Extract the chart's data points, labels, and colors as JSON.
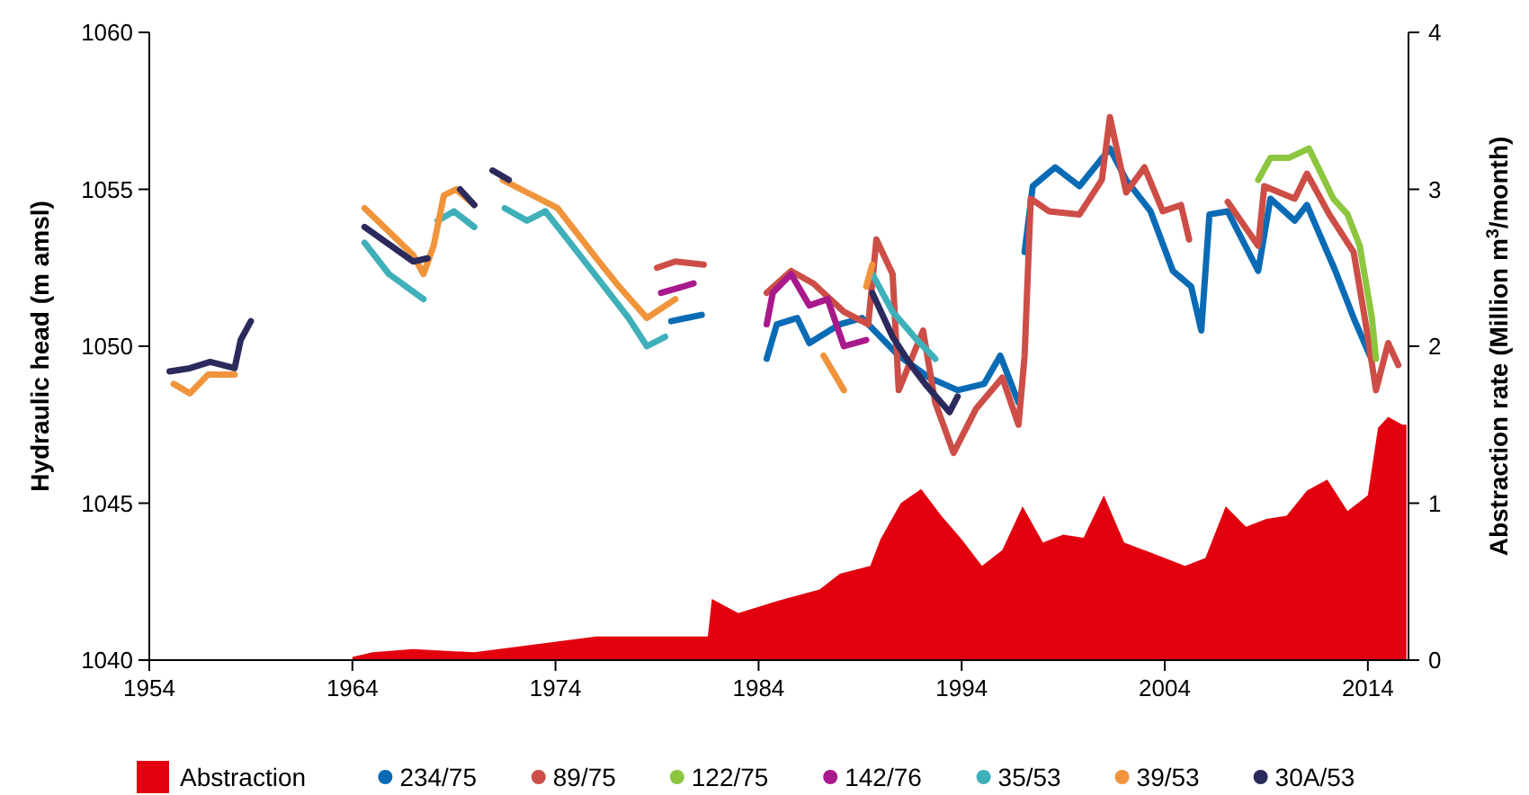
{
  "chart_data": {
    "type": "line",
    "xlabel": null,
    "ylabel": "Hydraulic head (m amsl)",
    "y2label": "Abstraction rate (Million m$^{3}$/month)",
    "xlim": [
      1954,
      2016
    ],
    "xticks": [
      1954,
      1964,
      1974,
      1984,
      1994,
      2004,
      2014
    ],
    "ylim": [
      1040,
      1060
    ],
    "yticks": [
      1040,
      1045,
      1050,
      1055,
      1060
    ],
    "y2lim": [
      0,
      4
    ],
    "y2ticks": [
      0,
      1,
      2,
      3,
      4
    ],
    "grid": false,
    "legend": "bottom",
    "line_style": "solid",
    "series": [
      {
        "name": "Abstraction",
        "type": "area",
        "axis": "y2",
        "color": "#e2000f",
        "x": [
          1964,
          1965,
          1967,
          1970,
          1973,
          1976,
          1979,
          1981.5,
          1981.7,
          1983,
          1985,
          1987,
          1988,
          1989.5,
          1990,
          1991,
          1992,
          1993,
          1994,
          1995,
          1996,
          1997,
          1998,
          1999,
          2000,
          2001,
          2002,
          2003,
          2004,
          2005,
          2006,
          2007,
          2008,
          2009,
          2010,
          2011,
          2012,
          2013,
          2014,
          2014.5,
          2015,
          2015.7,
          2015.9
        ],
        "values": [
          0.02,
          0.05,
          0.07,
          0.05,
          0.1,
          0.15,
          0.15,
          0.15,
          0.39,
          0.3,
          0.38,
          0.45,
          0.55,
          0.6,
          0.77,
          1.0,
          1.09,
          0.92,
          0.77,
          0.6,
          0.7,
          0.98,
          0.75,
          0.8,
          0.78,
          1.05,
          0.75,
          0.7,
          0.65,
          0.6,
          0.65,
          0.98,
          0.85,
          0.9,
          0.92,
          1.08,
          1.15,
          0.95,
          1.05,
          1.48,
          1.55,
          1.5,
          1.5
        ]
      },
      {
        "name": "234/75",
        "color": "#0a6bb5",
        "x": [
          1979.7,
          1981.2,
          1981.3,
          1984.4,
          1984.9,
          1985.9,
          1986.5,
          1988.0,
          1989.1,
          1990.9,
          1992.4,
          1993.8,
          1995.1,
          1995.9,
          1996.8,
          1996.9,
          1997.1,
          1997.5,
          1998.6,
          1999.8,
          2001.3,
          2002.1,
          2003.3,
          2004.4,
          2005.3,
          2005.8,
          2006.2,
          2007.1,
          2008.6,
          2009.2,
          2010.4,
          2011.0,
          2012.4,
          2013.3,
          2014.1
        ],
        "values": [
          1050.8,
          1051.0,
          null,
          1049.6,
          1050.7,
          1050.9,
          1050.1,
          1050.7,
          1050.9,
          1049.7,
          1049.0,
          1048.6,
          1048.8,
          1049.7,
          1048.2,
          null,
          1053.0,
          1055.1,
          1055.7,
          1055.1,
          1056.3,
          1055.3,
          1054.3,
          1052.4,
          1051.9,
          1050.5,
          1054.2,
          1054.3,
          1052.4,
          1054.7,
          1054.0,
          1054.5,
          1052.4,
          1050.9,
          1049.7
        ]
      },
      {
        "name": "89/75",
        "color": "#cc4e46",
        "x": [
          1979.0,
          1979.9,
          1981.3,
          1981.4,
          1984.4,
          1985.6,
          1986.7,
          1988.2,
          1989.4,
          1989.8,
          1990.6,
          1990.9,
          1992.1,
          1992.7,
          1993.6,
          1994.7,
          1996.0,
          1996.8,
          1997.1,
          1997.4,
          1998.3,
          1999.8,
          2000.9,
          2001.3,
          2002.1,
          2003.0,
          2003.9,
          2004.8,
          2005.2,
          2006,
          2007.1,
          2008.6,
          2008.9,
          2010.4,
          2011.0,
          2012.1,
          2013.3,
          2013.9,
          2014.4,
          2015.0,
          2015.5
        ],
        "values": [
          1052.5,
          1052.7,
          1052.6,
          null,
          1051.7,
          1052.4,
          1052.0,
          1051.1,
          1050.7,
          1053.4,
          1052.3,
          1048.6,
          1050.5,
          1048.2,
          1046.6,
          1048.0,
          1049.0,
          1047.5,
          1049.7,
          1054.7,
          1054.3,
          1054.2,
          1055.3,
          1057.3,
          1054.9,
          1055.7,
          1054.3,
          1054.5,
          1053.4,
          null,
          1054.6,
          1053.2,
          1055.1,
          1054.7,
          1055.5,
          1054.2,
          1053.0,
          1050.7,
          1048.6,
          1050.1,
          1049.4
        ]
      },
      {
        "name": "122/75",
        "color": "#8cc63f",
        "x": [
          2008.6,
          2009.2,
          2010.1,
          2011.1,
          2012.3,
          2013.0,
          2013.6,
          2014.2,
          2014.4
        ],
        "values": [
          1055.3,
          1056.0,
          1056.0,
          1056.3,
          1054.7,
          1054.2,
          1053.2,
          1050.9,
          1049.6
        ]
      },
      {
        "name": "142/76",
        "color": "#a8198c",
        "x": [
          1979.2,
          1980.8,
          1982,
          1984.4,
          1984.7,
          1985.6,
          1986.5,
          1987.4,
          1988.2,
          1989.3
        ],
        "values": [
          1051.7,
          1052.0,
          null,
          1050.7,
          1051.7,
          1052.3,
          1051.3,
          1051.5,
          1050.0,
          1050.2
        ]
      },
      {
        "name": "35/53",
        "color": "#3fb0b9",
        "x": [
          1964.6,
          1965.8,
          1967.5,
          1967.8,
          1968.2,
          1969.0,
          1970.0,
          1970.7,
          1971.5,
          1972.6,
          1973.5,
          1974.6,
          1976.4,
          1977.6,
          1978.5,
          1979.4,
          1980,
          1989.6,
          1990.6,
          1991.8,
          1992.7
        ],
        "values": [
          1053.3,
          1052.3,
          1051.5,
          null,
          1054.0,
          1054.3,
          1053.8,
          null,
          1054.4,
          1054.0,
          1054.3,
          1053.4,
          1051.9,
          1050.9,
          1050.0,
          1050.3,
          null,
          1052.3,
          1051.1,
          1050.2,
          1049.6
        ]
      },
      {
        "name": "39/53",
        "color": "#f0943c",
        "x": [
          1955.2,
          1956.0,
          1956.9,
          1958.2,
          1960,
          1964.6,
          1967.0,
          1967.5,
          1968.0,
          1968.5,
          1969.1,
          1970.0,
          1970.7,
          1971.4,
          1972.6,
          1974.1,
          1975.9,
          1977.0,
          1978.5,
          1979.9,
          1982,
          1987.2,
          1988.2,
          1988.8,
          1989.3,
          1989.6
        ],
        "values": [
          1048.8,
          1048.5,
          1049.1,
          1049.1,
          null,
          1054.4,
          1052.9,
          1052.3,
          1053.2,
          1054.8,
          1055.0,
          1054.5,
          null,
          1055.3,
          1054.9,
          1054.4,
          1052.9,
          1052.0,
          1050.9,
          1051.5,
          null,
          1049.7,
          1048.6,
          null,
          1051.9,
          1052.6
        ]
      },
      {
        "name": "30A/53",
        "color": "#2b2a5c",
        "x": [
          1955.0,
          1956.0,
          1957.0,
          1958.2,
          1958.5,
          1959.0,
          1960,
          1964.6,
          1967.0,
          1967.7,
          1968.5,
          1969.3,
          1970.0,
          1970.7,
          1970.9,
          1971.7,
          1980,
          1989.6,
          1990.6,
          1991.5,
          1992.2,
          1993.4,
          1993.8
        ],
        "values": [
          1049.2,
          1049.3,
          1049.5,
          1049.3,
          1050.2,
          1050.8,
          null,
          1053.8,
          1052.7,
          1052.8,
          null,
          1055.0,
          1054.5,
          null,
          1055.6,
          1055.3,
          null,
          1051.7,
          1050.3,
          1049.4,
          1048.8,
          1047.9,
          1048.4
        ]
      }
    ]
  }
}
